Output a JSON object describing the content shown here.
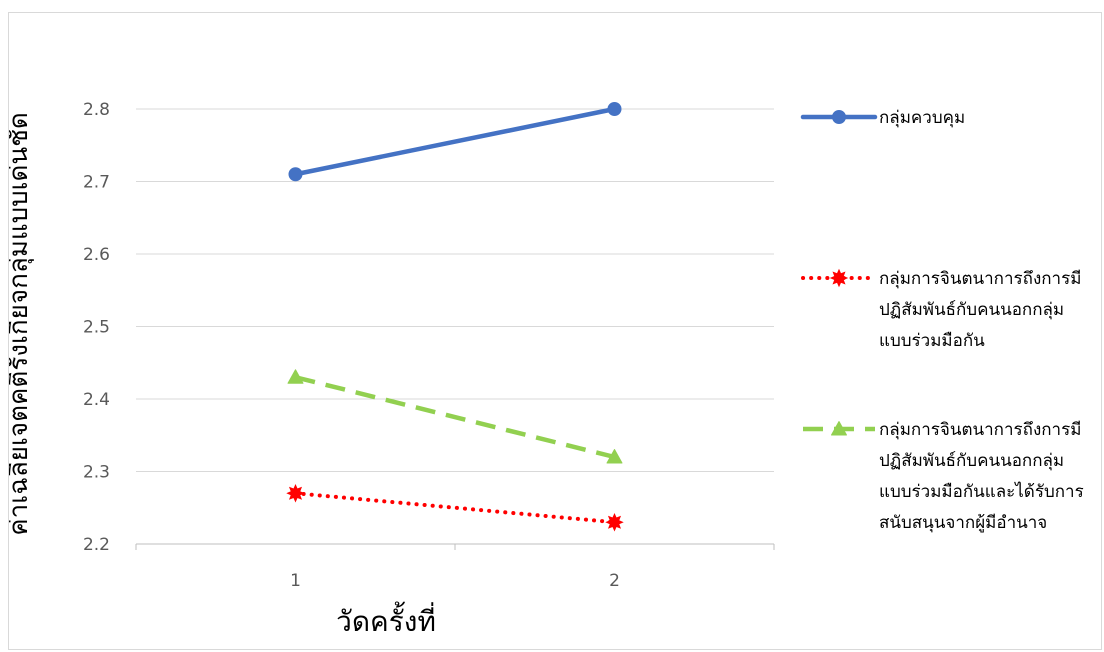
{
  "chart_data": {
    "type": "line",
    "categories": [
      "1",
      "2"
    ],
    "xlabel": "วัดครั้งที่",
    "ylabel": "ค่าเฉลี่ยเจตคติรังเกียจกลุ่มแบบเด่นชัด",
    "ylim": [
      2.2,
      2.8
    ],
    "yticks": [
      "2.2",
      "2.3",
      "2.4",
      "2.5",
      "2.6",
      "2.7",
      "2.8"
    ],
    "grid": "horizontal",
    "legend_position": "right",
    "series": [
      {
        "name": "กลุ่มควบคุม",
        "name_lines": [
          "กลุ่มควบคุม"
        ],
        "values": [
          2.71,
          2.8
        ],
        "color": "#4472c4",
        "line_style": "solid",
        "marker": "circle"
      },
      {
        "name": "กลุ่มการจินตนาการถึงการมีปฏิสัมพันธ์กับคนนอกกลุ่มแบบร่วมมือกัน",
        "name_lines": [
          "กลุ่มการจินตนาการถึงการมี",
          "ปฏิสัมพันธ์กับคนนอกกลุ่ม",
          "แบบร่วมมือกัน"
        ],
        "values": [
          2.27,
          2.23
        ],
        "color": "#ff0000",
        "line_style": "dotted",
        "marker": "star"
      },
      {
        "name": "กลุ่มการจินตนาการถึงการมีปฏิสัมพันธ์กับคนนอกกลุ่มแบบร่วมมือกันและได้รับการสนับสนุนจากผู้มีอำนาจ",
        "name_lines": [
          "กลุ่มการจินตนาการถึงการมี",
          "ปฏิสัมพันธ์กับคนนอกกลุ่ม",
          "แบบร่วมมือกันและได้รับการ",
          "สนับสนุนจากผู้มีอำนาจ"
        ],
        "values": [
          2.43,
          2.32
        ],
        "color": "#92d050",
        "line_style": "dashed",
        "marker": "triangle"
      }
    ]
  }
}
